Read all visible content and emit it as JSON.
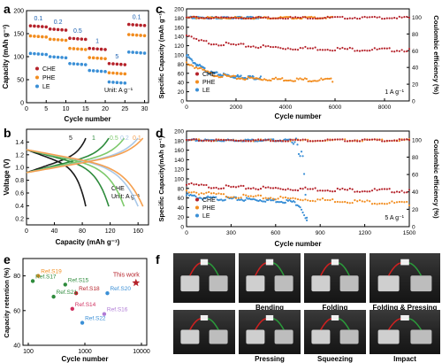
{
  "panels": {
    "a": {
      "label": "a",
      "ylabel": "Capacity (mAh g⁻¹)",
      "xlabel": "Cycle number",
      "yticks": [
        "0",
        "50",
        "100",
        "150",
        "200"
      ],
      "xticks": [
        "0",
        "5",
        "10",
        "15",
        "20",
        "25",
        "30"
      ],
      "unit": "Unit: A g⁻¹",
      "rate_labels": [
        "0.1",
        "0.2",
        "0.5",
        "1",
        "5",
        "0.1"
      ],
      "legend": [
        "CHE",
        "PHE",
        "LE"
      ]
    },
    "b": {
      "label": "b",
      "ylabel": "Voltage (V)",
      "xlabel": "Capacity (mAh g⁻¹)",
      "yticks": [
        "0.2",
        "0.4",
        "0.6",
        "0.8",
        "1.0",
        "1.2",
        "1.4"
      ],
      "xticks": [
        "0",
        "40",
        "80",
        "120",
        "160"
      ],
      "rate_labels": [
        "5",
        "1",
        "0.5",
        "0.2",
        "0.1"
      ],
      "note_line1": "CHE",
      "note_line2": "Unit: A g⁻¹"
    },
    "c": {
      "label": "c",
      "ylabel": "Specific Capacity (mAh g⁻¹)",
      "y2label": "Coulombic efficiency (%)",
      "xlabel": "Cycle number",
      "yticks": [
        "0",
        "20",
        "40",
        "60",
        "80",
        "100",
        "120",
        "140",
        "160",
        "180",
        "200"
      ],
      "y2ticks": [
        "0",
        "20",
        "40",
        "60",
        "80",
        "100"
      ],
      "xticks": [
        "0",
        "2000",
        "4000",
        "6000",
        "8000"
      ],
      "rate": "1 A g⁻¹",
      "legend": [
        "CHE",
        "PHE",
        "LE"
      ]
    },
    "d": {
      "label": "d",
      "ylabel": "Specific Capacity(mAh g⁻¹)",
      "y2label": "Coulombic efficiency (%)",
      "xlabel": "Cycle number",
      "yticks": [
        "0",
        "20",
        "40",
        "60",
        "80",
        "100",
        "120",
        "140",
        "160",
        "180",
        "200"
      ],
      "y2ticks": [
        "0",
        "20",
        "40",
        "60",
        "80",
        "100"
      ],
      "xticks": [
        "0",
        "300",
        "600",
        "900",
        "1200",
        "1500"
      ],
      "rate": "5 A g⁻¹",
      "legend": [
        "CHE",
        "PHE",
        "LE"
      ]
    },
    "e": {
      "label": "e",
      "ylabel": "Capacity retention (%)",
      "xlabel": "Cycle number",
      "yticks": [
        "40",
        "60",
        "80"
      ],
      "xticks": [
        "100",
        "1000",
        "10000"
      ],
      "this_work": "This work"
    },
    "f": {
      "label": "f",
      "captions": [
        "Bending",
        "Folding",
        "Folding & Pressing",
        "Pressing",
        "Squeezing",
        "Impact"
      ]
    }
  },
  "colors": {
    "CHE": "#b5222a",
    "PHE": "#f28c1e",
    "LE": "#3a8fd6",
    "this_work": "#b5222a"
  },
  "chart_data": [
    {
      "panel": "a",
      "type": "scatter",
      "title": "",
      "xlabel": "Cycle number",
      "ylabel": "Capacity (mAh g⁻¹)",
      "xlim": [
        0,
        31
      ],
      "ylim": [
        0,
        200
      ],
      "rates": [
        {
          "label": "0.1",
          "cycles": [
            1,
            5
          ]
        },
        {
          "label": "0.2",
          "cycles": [
            6,
            10
          ]
        },
        {
          "label": "0.5",
          "cycles": [
            11,
            15
          ]
        },
        {
          "label": "1",
          "cycles": [
            16,
            20
          ]
        },
        {
          "label": "5",
          "cycles": [
            21,
            25
          ]
        },
        {
          "label": "0.1",
          "cycles": [
            26,
            30
          ]
        }
      ],
      "series": [
        {
          "name": "CHE",
          "levels": [
            167,
            160,
            140,
            118,
            85,
            170
          ]
        },
        {
          "name": "PHE",
          "levels": [
            145,
            138,
            118,
            98,
            65,
            148
          ]
        },
        {
          "name": "LE",
          "levels": [
            107,
            100,
            85,
            70,
            45,
            110
          ]
        }
      ]
    },
    {
      "panel": "b",
      "type": "line",
      "title": "",
      "xlabel": "Capacity (mAh g⁻¹)",
      "ylabel": "Voltage (V)",
      "xlim": [
        0,
        175
      ],
      "ylim": [
        0.1,
        1.6
      ],
      "series": [
        {
          "name": "5",
          "color": "#1a1a1a",
          "capacity": 85
        },
        {
          "name": "1",
          "color": "#2e8b3c",
          "capacity": 118
        },
        {
          "name": "0.5",
          "color": "#7dc96b",
          "capacity": 140
        },
        {
          "name": "0.2",
          "color": "#a9c8e8",
          "capacity": 160
        },
        {
          "name": "0.1",
          "color": "#f5a050",
          "capacity": 167
        }
      ]
    },
    {
      "panel": "c",
      "type": "line",
      "title": "",
      "xlabel": "Cycle number",
      "ylabel": "Specific Capacity (mAh g⁻¹)",
      "y2label": "Coulombic efficiency (%)",
      "xlim": [
        0,
        9000
      ],
      "ylim": [
        0,
        200
      ],
      "y2lim": [
        0,
        110
      ],
      "series": [
        {
          "name": "CHE",
          "x": [
            0,
            200,
            500,
            1000,
            2000,
            3000,
            4000,
            5000,
            6000,
            7000,
            8000,
            9000
          ],
          "y": [
            145,
            138,
            132,
            128,
            123,
            120,
            117,
            116,
            115,
            114,
            113,
            113
          ],
          "ce_x": [
            0,
            9000
          ],
          "ce": [
            100,
            100
          ]
        },
        {
          "name": "PHE",
          "x": [
            0,
            200,
            500,
            1000,
            2000,
            3000,
            4000,
            5000,
            5900
          ],
          "y": [
            85,
            80,
            72,
            60,
            52,
            50,
            49,
            48,
            47
          ],
          "ce_x": [
            0,
            5900
          ],
          "ce": [
            100,
            100
          ]
        },
        {
          "name": "LE",
          "x": [
            0,
            200,
            500,
            1000,
            2000,
            3000
          ],
          "y": [
            100,
            90,
            78,
            62,
            55,
            52
          ],
          "ce_x": [
            0,
            3000
          ],
          "ce": [
            100,
            100
          ]
        }
      ]
    },
    {
      "panel": "d",
      "type": "line",
      "title": "",
      "xlabel": "Cycle number",
      "ylabel": "Specific Capacity(mAh g⁻¹)",
      "y2label": "Coulombic efficiency (%)",
      "xlim": [
        0,
        1500
      ],
      "ylim": [
        0,
        200
      ],
      "y2lim": [
        0,
        110
      ],
      "series": [
        {
          "name": "CHE",
          "x": [
            0,
            100,
            300,
            600,
            900,
            1200,
            1500
          ],
          "y": [
            90,
            87,
            84,
            82,
            80,
            78,
            77
          ],
          "ce_x": [
            0,
            1500
          ],
          "ce": [
            100,
            100
          ]
        },
        {
          "name": "PHE",
          "x": [
            0,
            100,
            300,
            600,
            900,
            1200,
            1500
          ],
          "y": [
            77,
            72,
            66,
            62,
            58,
            54,
            50
          ],
          "ce_x": [
            0,
            1500
          ],
          "ce": [
            100,
            100
          ]
        },
        {
          "name": "LE",
          "x": [
            0,
            100,
            300,
            500,
            700,
            760,
            790,
            810
          ],
          "y": [
            68,
            62,
            60,
            58,
            55,
            48,
            30,
            12
          ],
          "ce_x": [
            0,
            700,
            720,
            740,
            760,
            780,
            800,
            810
          ],
          "ce": [
            100,
            100,
            95,
            104,
            80,
            90,
            40,
            10
          ]
        }
      ]
    },
    {
      "panel": "e",
      "type": "scatter",
      "title": "",
      "xlabel": "Cycle number",
      "ylabel": "Capacity retention (%)",
      "xscale": "log",
      "xlim": [
        100,
        10000
      ],
      "ylim": [
        40,
        90
      ],
      "points": [
        {
          "label": "Ref.S19",
          "x": 150,
          "y": 80,
          "color": "#f28c1e"
        },
        {
          "label": "Ref.S17",
          "x": 120,
          "y": 77,
          "color": "#2e8b3c"
        },
        {
          "label": "Ref.S15",
          "x": 450,
          "y": 75,
          "color": "#2e8b3c"
        },
        {
          "label": "Ref.S18",
          "x": 700,
          "y": 70,
          "color": "#b5222a"
        },
        {
          "label": "Ref.S21",
          "x": 280,
          "y": 68,
          "color": "#2e8b3c"
        },
        {
          "label": "Ref.S20",
          "x": 2500,
          "y": 70,
          "color": "#3a8fd6"
        },
        {
          "label": "Ref.S14",
          "x": 600,
          "y": 61,
          "color": "#d03060"
        },
        {
          "label": "Ref.S16",
          "x": 2200,
          "y": 58,
          "color": "#b07cd6"
        },
        {
          "label": "Ref.S22",
          "x": 900,
          "y": 53,
          "color": "#3a8fd6"
        },
        {
          "label": "This work",
          "x": 8000,
          "y": 76,
          "color": "#b5222a",
          "marker": "star"
        }
      ]
    }
  ]
}
